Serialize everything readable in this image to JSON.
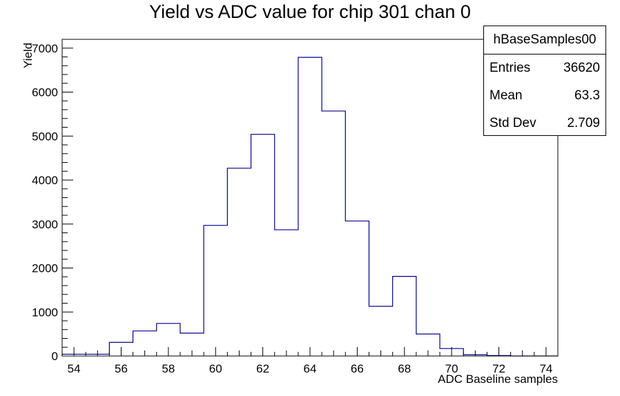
{
  "chart_data": {
    "type": "bar",
    "title": "Yield vs ADC value for chip 301 chan 0",
    "xlabel": "ADC Baseline samples",
    "ylabel": "Yield",
    "xlim": [
      53.5,
      74.5
    ],
    "ylim": [
      0,
      7200
    ],
    "bin_edges": [
      53.5,
      54.5,
      55.5,
      56.5,
      57.5,
      58.5,
      59.5,
      60.5,
      61.5,
      62.5,
      63.5,
      64.5,
      65.5,
      66.5,
      67.5,
      68.5,
      69.5,
      70.5,
      71.5,
      72.5,
      73.5,
      74.5
    ],
    "values": [
      40,
      40,
      310,
      570,
      740,
      520,
      2970,
      4270,
      5040,
      2870,
      6790,
      5570,
      3070,
      1130,
      1810,
      500,
      170,
      30,
      10,
      0,
      0
    ],
    "x_ticks": [
      54,
      56,
      58,
      60,
      62,
      64,
      66,
      68,
      70,
      72,
      74
    ],
    "y_ticks": [
      0,
      1000,
      2000,
      3000,
      4000,
      5000,
      6000,
      7000
    ],
    "line_color": "#00008b",
    "stats": {
      "name": "hBaseSamples00",
      "rows": [
        {
          "label": "Entries",
          "value": "36620"
        },
        {
          "label": "Mean",
          "value": "63.3"
        },
        {
          "label": "Std Dev",
          "value": "2.709"
        }
      ]
    }
  }
}
